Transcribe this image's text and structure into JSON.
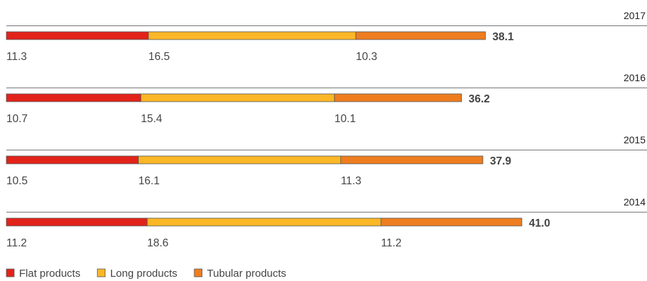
{
  "chart_data": {
    "type": "bar",
    "orientation": "horizontal",
    "stacked": true,
    "categories": [
      "2017",
      "2016",
      "2015",
      "2014"
    ],
    "series": [
      {
        "name": "Flat products",
        "values": [
          11.3,
          10.7,
          10.5,
          11.2
        ],
        "color": "#e2231a"
      },
      {
        "name": "Long products",
        "values": [
          16.5,
          15.4,
          16.1,
          18.6
        ],
        "color": "#fbb726"
      },
      {
        "name": "Tubular products",
        "values": [
          10.3,
          10.1,
          11.3,
          11.2
        ],
        "color": "#ee7d1f"
      }
    ],
    "totals": [
      "38.1",
      "36.2",
      "37.9",
      "41.0"
    ],
    "segment_labels": [
      [
        "11.3",
        "16.5",
        "10.3"
      ],
      [
        "10.7",
        "15.4",
        "10.1"
      ],
      [
        "10.5",
        "16.1",
        "11.3"
      ],
      [
        "11.2",
        "18.6",
        "11.2"
      ]
    ],
    "legend_position": "bottom-left",
    "grid": false
  }
}
